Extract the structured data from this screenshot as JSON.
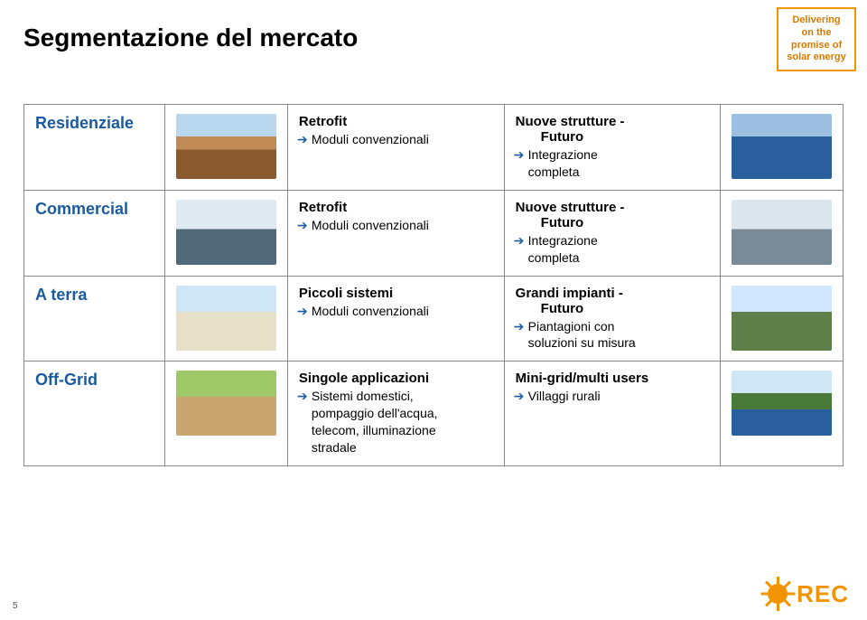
{
  "page": {
    "title": "Segmentazione del mercato",
    "tagline": "Delivering on the promise of solar energy",
    "page_number": "5"
  },
  "logo": {
    "text": "REC",
    "color": "#f29400"
  },
  "rows": [
    {
      "label": "Residenziale",
      "left": {
        "title_line1": "Retrofit",
        "bullet": "Moduli convenzionali"
      },
      "right": {
        "title_line1": "Nuove strutture -",
        "title_line2": "Futuro",
        "bullet_line1": "Integrazione",
        "bullet_line2": "completa"
      }
    },
    {
      "label": "Commercial",
      "left": {
        "title_line1": "Retrofit",
        "bullet": "Moduli convenzionali"
      },
      "right": {
        "title_line1": "Nuove strutture -",
        "title_line2": "Futuro",
        "bullet_line1": "Integrazione",
        "bullet_line2": "completa"
      }
    },
    {
      "label": "A terra",
      "left": {
        "title_line1": "Piccoli sistemi",
        "bullet": "Moduli convenzionali"
      },
      "right": {
        "title_line1": "Grandi impianti -",
        "title_line2": "Futuro",
        "bullet_line1": "Piantagioni con",
        "bullet_line2": "soluzioni su misura"
      }
    },
    {
      "label": "Off-Grid",
      "left": {
        "title_line1": "Singole applicazioni",
        "bullet_line1": "Sistemi domestici,",
        "bullet_line2": "pompaggio dell'acqua,",
        "bullet_line3": "telecom, illuminazione",
        "bullet_line4": "stradale"
      },
      "right": {
        "title_line1": "Mini-grid/multi users",
        "bullet_line1": "Villaggi rurali"
      }
    }
  ],
  "colors": {
    "accent_orange": "#f29400",
    "accent_blue": "#1a5a9e",
    "border": "#888888",
    "text": "#000000"
  }
}
